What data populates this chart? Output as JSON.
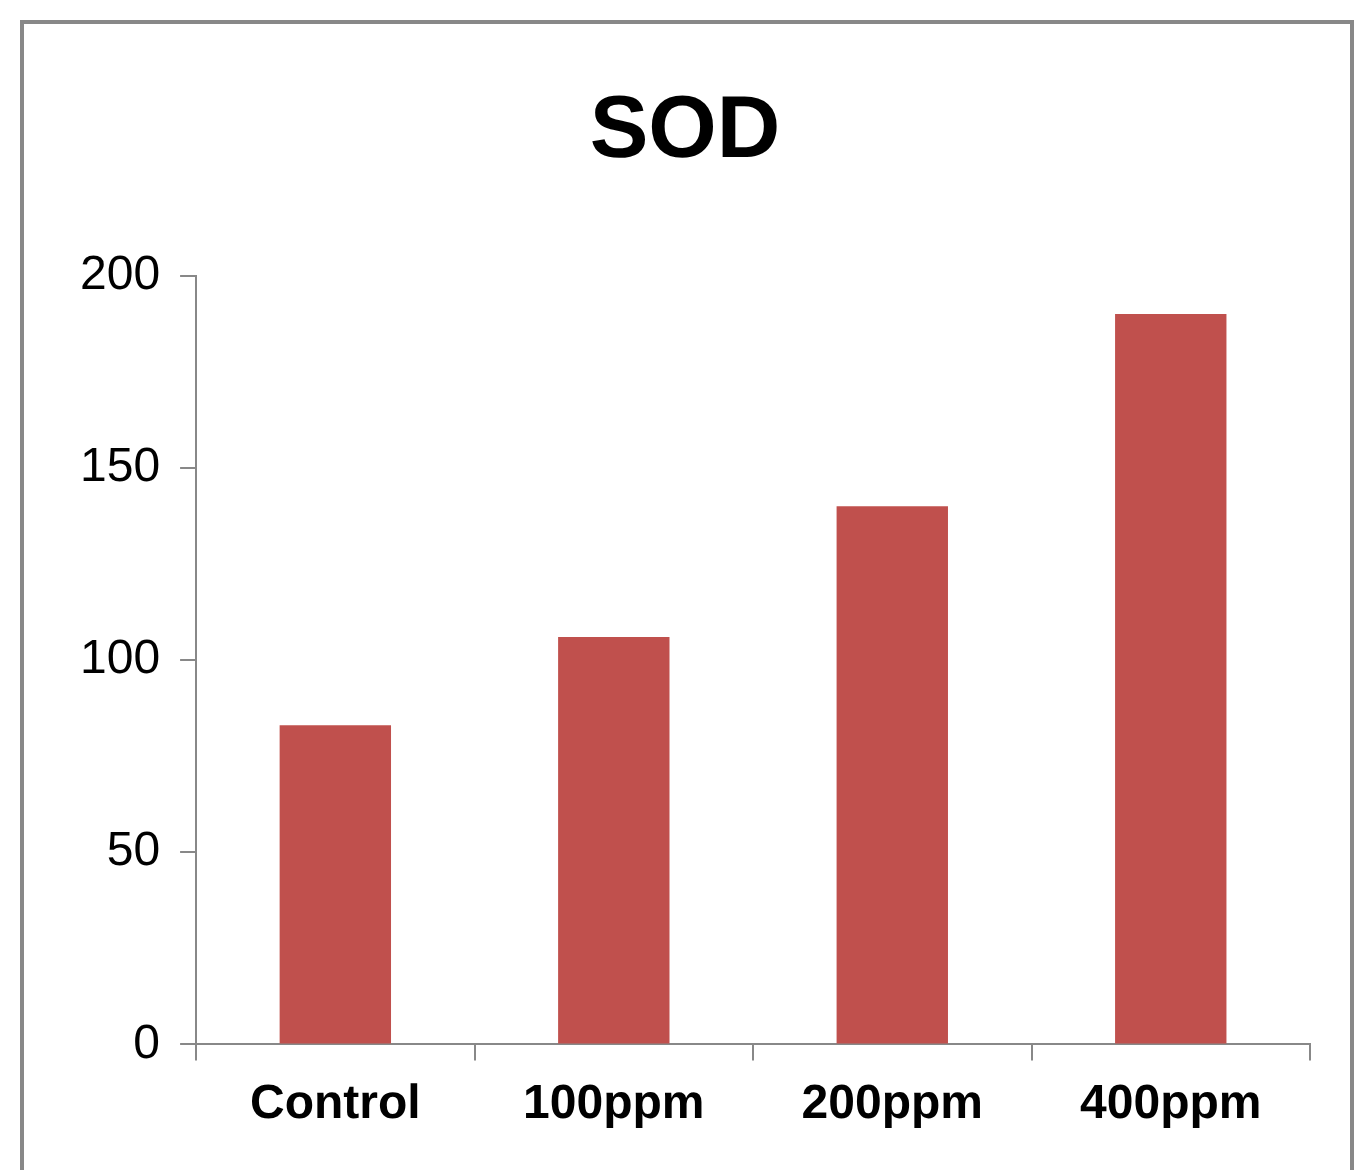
{
  "chart_data": {
    "type": "bar",
    "title": "SOD",
    "categories": [
      "Control",
      "100ppm",
      "200ppm",
      "400ppm"
    ],
    "values": [
      83,
      106,
      140,
      190
    ],
    "color": "#c0504d",
    "ylim": [
      0,
      200
    ],
    "yticks": [
      0,
      50,
      100,
      150,
      200
    ],
    "grid": false,
    "legend": false
  }
}
